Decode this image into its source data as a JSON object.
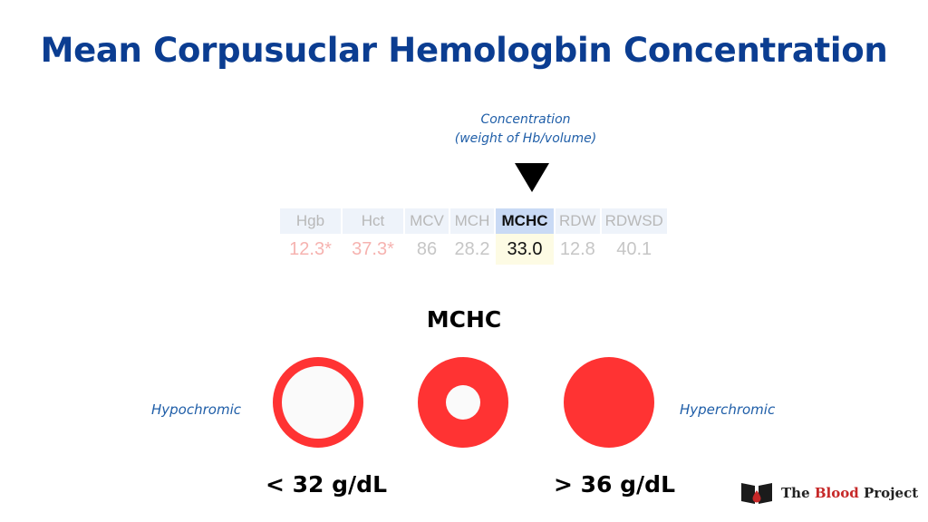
{
  "title": "Mean Corpusuclar Hemologbin Concentration",
  "annotation": {
    "line1": "Concentration",
    "line2": "(weight of Hb/volume)"
  },
  "lab_table": {
    "headers": [
      "Hgb",
      "Hct",
      "MCV",
      "MCH",
      "MCHC",
      "RDW",
      "RDWSD"
    ],
    "values": [
      "12.3*",
      "37.3*",
      "86",
      "28.2",
      "33.0",
      "12.8",
      "40.1"
    ],
    "highlighted": "MCHC"
  },
  "subtitle": "MCHC",
  "cells": {
    "left_label": "Hypochromic",
    "right_label": "Hyperchromic"
  },
  "ranges": {
    "low": "< 32 g/dL",
    "high": "> 36 g/dL"
  },
  "logo": {
    "prefix": "The ",
    "highlight": "Blood",
    "suffix": " Project",
    "icon": "open-book-blood-drop-icon"
  },
  "colors": {
    "title": "#0b3d91",
    "annotation": "#1f5ea8",
    "cell_red": "#ff3333",
    "abnormal_value": "#f6b3b0",
    "highlight_header": "#c9daf5",
    "highlight_value": "#fdfbe4"
  }
}
